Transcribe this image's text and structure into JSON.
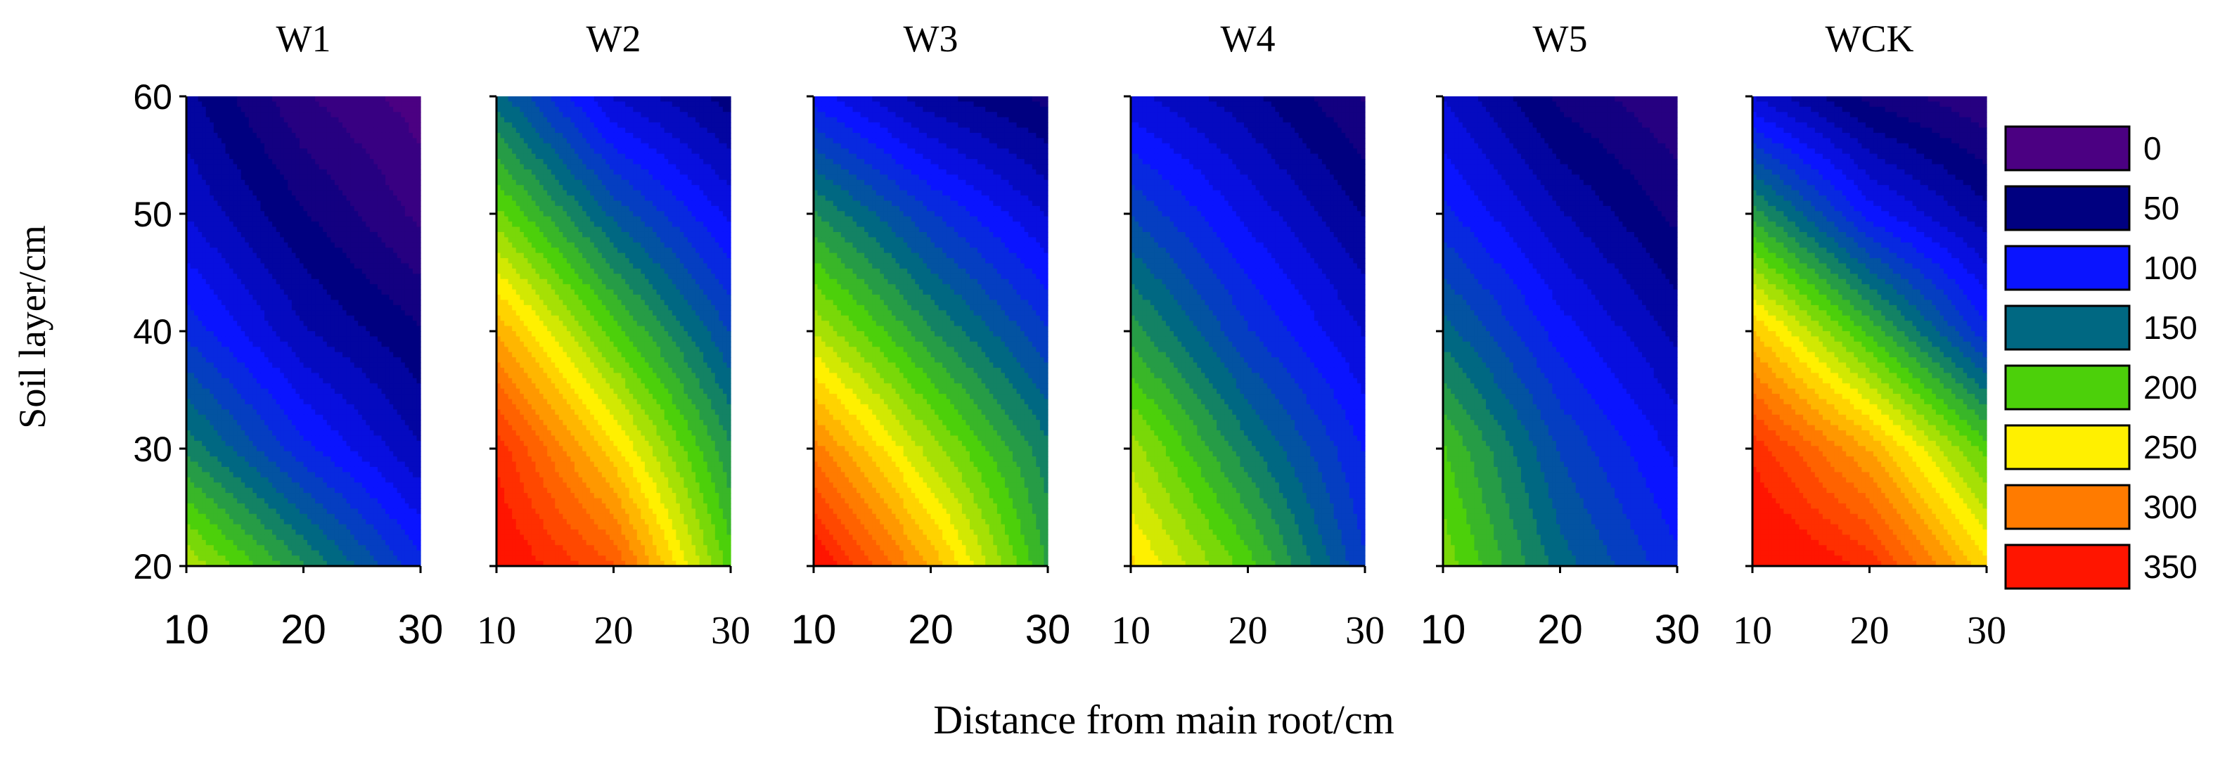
{
  "chart_data": {
    "type": "heatmap",
    "chart_type_detail": "filled contour plots (6 panels, shared colour scale)",
    "xlabel": "Distance from main root/cm",
    "ylabel": "Soil layer/cm",
    "x_values": [
      10,
      20,
      30
    ],
    "y_values": [
      20,
      30,
      40,
      50,
      60
    ],
    "xlim": [
      10,
      30
    ],
    "ylim": [
      20,
      60
    ],
    "x_ticks": [
      "10",
      "20",
      "30"
    ],
    "y_ticks": [
      "20",
      "30",
      "40",
      "50",
      "60"
    ],
    "grid": false,
    "legend": {
      "placement": "right",
      "levels": [
        {
          "label": "0",
          "value": 0,
          "color": "#4B0082"
        },
        {
          "label": "50",
          "value": 50,
          "color": "#000080"
        },
        {
          "label": "100",
          "value": 100,
          "color": "#0A14FF"
        },
        {
          "label": "150",
          "value": 150,
          "color": "#006882"
        },
        {
          "label": "200",
          "value": 200,
          "color": "#4CD00A"
        },
        {
          "label": "250",
          "value": 250,
          "color": "#FFF000"
        },
        {
          "label": "300",
          "value": 300,
          "color": "#FF7B00"
        },
        {
          "label": "350",
          "value": 350,
          "color": "#FF1500"
        }
      ]
    },
    "panels": [
      {
        "title": "W1",
        "z_rows_top_to_bottom": [
          [
            60,
            20,
            0
          ],
          [
            80,
            45,
            15
          ],
          [
            115,
            70,
            45
          ],
          [
            165,
            110,
            70
          ],
          [
            230,
            170,
            110
          ]
        ]
      },
      {
        "title": "W2",
        "z_rows_top_to_bottom": [
          [
            150,
            80,
            50
          ],
          [
            210,
            140,
            90
          ],
          [
            280,
            200,
            130
          ],
          [
            340,
            260,
            170
          ],
          [
            360,
            320,
            200
          ]
        ]
      },
      {
        "title": "W3",
        "z_rows_top_to_bottom": [
          [
            100,
            60,
            40
          ],
          [
            170,
            120,
            80
          ],
          [
            230,
            170,
            120
          ],
          [
            300,
            225,
            160
          ],
          [
            360,
            280,
            180
          ]
        ]
      },
      {
        "title": "W4",
        "z_rows_top_to_bottom": [
          [
            85,
            60,
            30
          ],
          [
            130,
            90,
            55
          ],
          [
            175,
            120,
            80
          ],
          [
            225,
            160,
            105
          ],
          [
            260,
            200,
            120
          ]
        ]
      },
      {
        "title": "W5",
        "z_rows_top_to_bottom": [
          [
            80,
            40,
            20
          ],
          [
            110,
            70,
            40
          ],
          [
            150,
            100,
            65
          ],
          [
            195,
            130,
            90
          ],
          [
            215,
            150,
            110
          ]
        ]
      },
      {
        "title": "WCK",
        "z_rows_top_to_bottom": [
          [
            80,
            40,
            20
          ],
          [
            175,
            100,
            60
          ],
          [
            270,
            190,
            110
          ],
          [
            340,
            280,
            200
          ],
          [
            370,
            340,
            260
          ]
        ]
      }
    ]
  }
}
